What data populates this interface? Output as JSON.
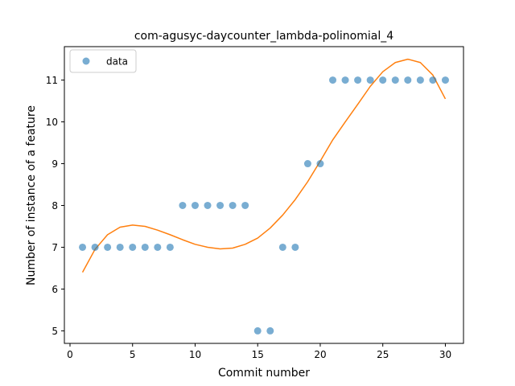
{
  "chart_data": {
    "type": "scatter",
    "title": "com-agusyc-daycounter_lambda-polinomial_4",
    "xlabel": "Commit number",
    "ylabel": "Number of instance of a feature",
    "xlim": [
      -0.45,
      31.45
    ],
    "ylim": [
      4.7,
      11.8
    ],
    "xticks": [
      0,
      5,
      10,
      15,
      20,
      25,
      30
    ],
    "yticks": [
      5,
      6,
      7,
      8,
      9,
      10,
      11
    ],
    "grid": false,
    "legend": {
      "position": "top-left",
      "entries": [
        "data"
      ]
    },
    "series": [
      {
        "name": "data",
        "kind": "scatter",
        "color": "#1f77b4",
        "x": [
          1,
          2,
          3,
          4,
          5,
          6,
          7,
          8,
          9,
          10,
          11,
          12,
          13,
          14,
          15,
          16,
          17,
          18,
          19,
          20,
          21,
          22,
          23,
          24,
          25,
          26,
          27,
          28,
          29,
          30
        ],
        "y": [
          7,
          7,
          7,
          7,
          7,
          7,
          7,
          7,
          8,
          8,
          8,
          8,
          8,
          8,
          5,
          5,
          7,
          7,
          9,
          9,
          11,
          11,
          11,
          11,
          11,
          11,
          11,
          11,
          11,
          11
        ]
      },
      {
        "kind": "line",
        "color": "#ff7f0e",
        "x": [
          1,
          2,
          3,
          4,
          5,
          6,
          7,
          8,
          9,
          10,
          11,
          12,
          13,
          14,
          15,
          16,
          17,
          18,
          19,
          20,
          21,
          22,
          23,
          24,
          25,
          26,
          27,
          28,
          29,
          30
        ],
        "y": [
          6.4,
          6.95,
          7.3,
          7.48,
          7.53,
          7.5,
          7.41,
          7.3,
          7.18,
          7.07,
          7.0,
          6.96,
          6.98,
          7.07,
          7.22,
          7.46,
          7.77,
          8.14,
          8.57,
          9.06,
          9.57,
          10.0,
          10.42,
          10.85,
          11.2,
          11.42,
          11.5,
          11.42,
          11.12,
          10.55
        ]
      }
    ]
  }
}
